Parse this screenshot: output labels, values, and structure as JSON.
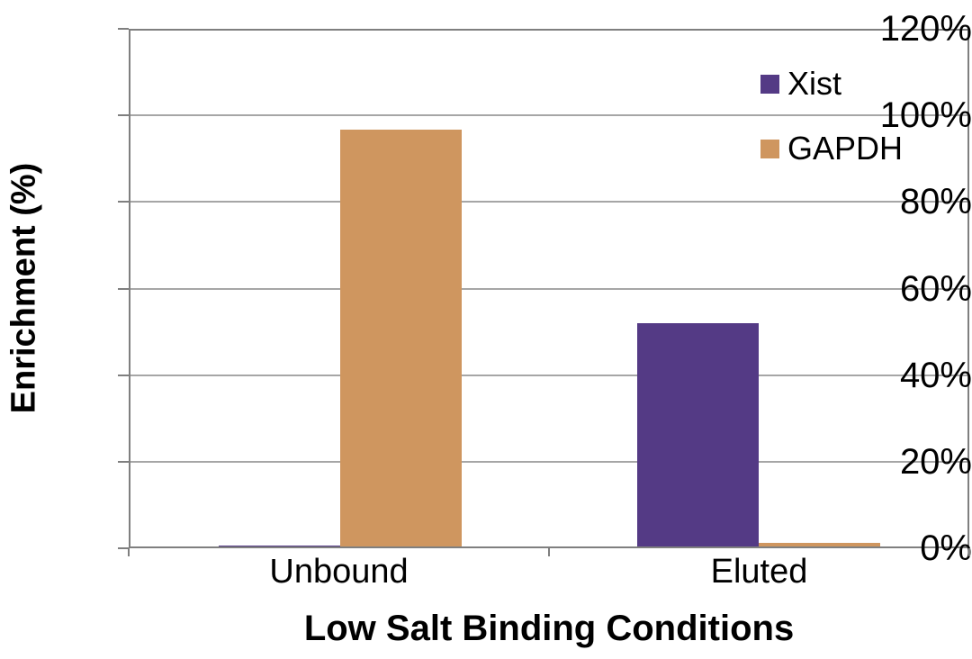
{
  "chart_data": {
    "type": "bar",
    "title": "",
    "xlabel": "Low Salt Binding Conditions",
    "ylabel": "Enrichment (%)",
    "categories": [
      "Unbound",
      "Eluted"
    ],
    "series": [
      {
        "name": "Xist",
        "color": "#543a85",
        "values": [
          0.3,
          52
        ]
      },
      {
        "name": "GAPDH",
        "color": "#cf965f",
        "values": [
          97,
          0.8
        ]
      }
    ],
    "ylim": [
      0,
      120
    ],
    "ytick_step": 20,
    "ytick_labels": [
      "0%",
      "20%",
      "40%",
      "60%",
      "80%",
      "100%",
      "120%"
    ],
    "grid": "horizontal",
    "legend_position": "top-right",
    "colors": {
      "gridline": "#a6a6a6",
      "axis_border": "#7f7f7f",
      "text": "#000000",
      "background": "#ffffff"
    }
  }
}
